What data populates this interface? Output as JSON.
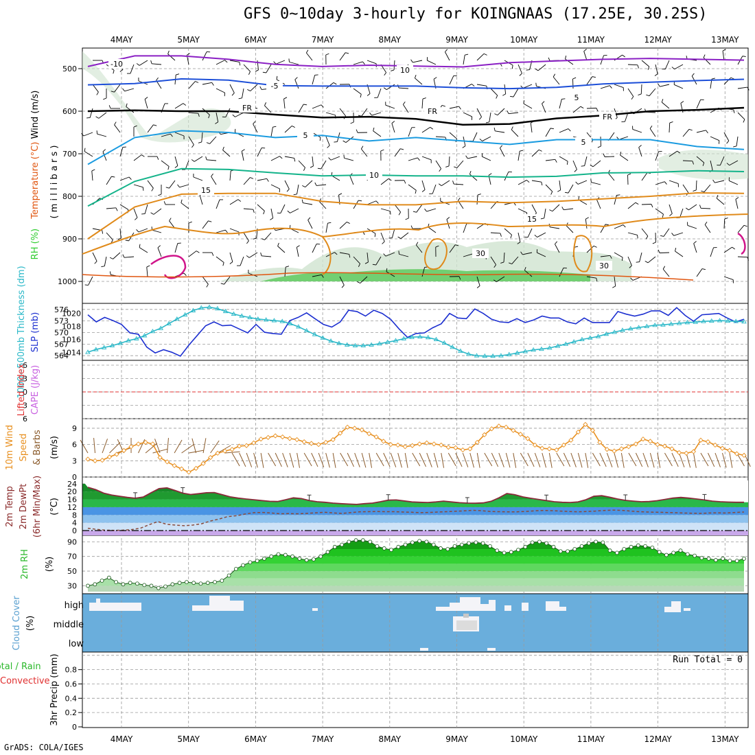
{
  "title": "GFS 0~10day 3-hourly for KOINGNAAS (17.25E, 30.25S)",
  "credit": "GrADS: COLA/IGES",
  "dates": [
    "4MAY",
    "5MAY",
    "6MAY",
    "7MAY",
    "8MAY",
    "9MAY",
    "10MAY",
    "11MAY",
    "12MAY",
    "13MAY"
  ],
  "colors": {
    "temp_cold": "#8a1fc4",
    "temp_blue": "#1d4fd8",
    "temp_cyan": "#1a9be0",
    "temp_green": "#13b38a",
    "temp_orange": "#e08a1a",
    "temp_red": "#e0550f",
    "magenta": "#d0148a",
    "rh_green": "#2ecc2e",
    "cloud_blue": "#6aaedc",
    "slp_blue": "#1c2fd0",
    "thick_cyan": "#2ab8c8",
    "wind_orange": "#e89020",
    "barb_brown": "#8a5a2a"
  },
  "labels": {
    "panel1_wind": "Wind (m/s)",
    "panel1_temp": "Temperature (°C)",
    "panel1_rh": "RH (%)",
    "panel1_units": "( m i l l i b a r s )",
    "panel2_thick": "1000~500mb Thickness (dm)",
    "panel2_slp": "SLP (mb)",
    "panel3_li": "Lifted Index",
    "panel3_cape": "CAPE (J/kg)",
    "panel4_a": "10m Wind",
    "panel4_b": "Speed",
    "panel4_c": "& Barbs",
    "panel4_units": "(m/s)",
    "panel5_a": "2m Temp",
    "panel5_b": "2m DewPt",
    "panel5_c": "(6hr Min/Max)",
    "panel5_units": "(°C)",
    "panel6_a": "2m RH",
    "panel6_units": "(%)",
    "panel7_a": "Cloud Cover",
    "panel7_units": "(%)",
    "panel8_a": "Total / Rain",
    "panel8_b": "Convective",
    "panel8_units": "3hr Precip (mm)",
    "run_total": "Run Total = 0"
  },
  "chart_data": [
    {
      "type": "contour",
      "name": "upper-air-cross-section",
      "ylabel": "millibars",
      "y_ticks": [
        "500",
        "600",
        "700",
        "800",
        "900",
        "1000"
      ],
      "contour_labels": [
        "-10",
        "10",
        "-5",
        "5",
        "FR",
        "FR",
        "FR",
        "5",
        "5",
        "10",
        "15",
        "15",
        "30",
        "30"
      ],
      "isotherms": [
        {
          "label": "-10",
          "level_mb": [
            495,
            470,
            470,
            478,
            490,
            495,
            492,
            494,
            496,
            486,
            482,
            478,
            476,
            478,
            480
          ]
        },
        {
          "label": "-5",
          "level_mb": [
            538,
            535,
            524,
            527,
            540,
            541,
            541,
            541,
            545,
            547,
            544,
            536,
            532,
            528,
            525
          ]
        },
        {
          "label": "FR",
          "level_mb": [
            600,
            598,
            600,
            600,
            608,
            615,
            613,
            618,
            632,
            630,
            617,
            610,
            600,
            597,
            592
          ]
        },
        {
          "label": "5",
          "level_mb": [
            725,
            662,
            646,
            650,
            662,
            657,
            670,
            662,
            670,
            678,
            667,
            667,
            667,
            683,
            690
          ]
        },
        {
          "label": "10",
          "level_mb": [
            823,
            765,
            735,
            737,
            745,
            752,
            750,
            752,
            752,
            755,
            753,
            745,
            744,
            740,
            742
          ]
        },
        {
          "label": "15",
          "level_mb": [
            900,
            825,
            795,
            793,
            793,
            812,
            820,
            820,
            812,
            815,
            812,
            806,
            800,
            792,
            793
          ]
        }
      ]
    },
    {
      "type": "line",
      "name": "slp-thickness",
      "y_ticks_left": [
        "576",
        "573",
        "570",
        "567",
        "564"
      ],
      "y_ticks_right": [
        "1020",
        "1018",
        "1016",
        "1014"
      ],
      "series": [
        {
          "name": "SLP (mb)",
          "values": [
            1019.8,
            1018.7,
            1019.4,
            1018.9,
            1018.3,
            1017.0,
            1016.8,
            1014.8,
            1013.9,
            1014.4,
            1014.0,
            1013.4,
            1015.1,
            1016.6,
            1018.1,
            1018.7,
            1018.1,
            1018.2,
            1017.6,
            1017.0,
            1018.3,
            1017.1,
            1016.9,
            1016.8,
            1018.9,
            1019.4,
            1020.1,
            1019.2,
            1018.3,
            1017.9,
            1018.7,
            1020.5,
            1020.3,
            1019.6,
            1020.5,
            1020.0,
            1019.1,
            1017.6,
            1016.3,
            1016.9,
            1017.0,
            1017.8,
            1018.4,
            1020.0,
            1019.3,
            1019.2,
            1020.7,
            1020.0,
            1019.1,
            1018.7,
            1018.6,
            1019.2,
            1018.6,
            1019.0,
            1019.6,
            1019.3,
            1019.3,
            1018.7,
            1018.4,
            1019.3,
            1018.6,
            1018.6,
            1018.6,
            1020.3,
            1019.9,
            1019.6,
            1019.9,
            1020.4,
            1020.4,
            1019.7,
            1020.9,
            1019.7,
            1018.8,
            1019.8,
            1019.9,
            1020.0,
            1019.3,
            1018.7,
            1019.1
          ]
        },
        {
          "name": "Thickness (dm)",
          "values": [
            564.9,
            565.6,
            566.1,
            566.6,
            567.2,
            567.9,
            568.4,
            569.2,
            570.3,
            571.1,
            572.3,
            573.5,
            574.6,
            575.7,
            576.4,
            576.6,
            576.2,
            575.5,
            574.8,
            574.3,
            573.9,
            573.5,
            573.3,
            573.1,
            572.9,
            572.3,
            571.5,
            570.5,
            569.5,
            568.6,
            567.8,
            567.2,
            566.8,
            566.6,
            566.6,
            566.8,
            567.1,
            567.5,
            567.9,
            568.4,
            568.8,
            568.9,
            568.7,
            568.2,
            567.3,
            566.2,
            565.2,
            564.4,
            564.0,
            563.9,
            563.9,
            564.0,
            564.3,
            564.7,
            565.1,
            565.5,
            565.7,
            566.0,
            566.5,
            567.0,
            567.6,
            568.2,
            568.6,
            569.0,
            569.6,
            570.1,
            570.6,
            571.0,
            571.3,
            571.6,
            571.9,
            572.0,
            572.2,
            572.4,
            572.6,
            572.7,
            572.9,
            573.0,
            573.1,
            573.0,
            572.9,
            572.8
          ]
        }
      ]
    },
    {
      "type": "line",
      "name": "lifted-index-cape",
      "y_ticks": [
        "-6",
        "-3",
        "0",
        "3",
        "6"
      ],
      "series": [
        {
          "name": "Lifted Index",
          "values": []
        }
      ]
    },
    {
      "type": "line",
      "name": "10m-wind",
      "y_ticks": [
        "9",
        "6",
        "3",
        "0"
      ],
      "series": [
        {
          "name": "10m wind speed (m/s)",
          "values": [
            3.3,
            3.0,
            3.1,
            3.7,
            4.2,
            4.9,
            5.6,
            6.1,
            6.4,
            6.1,
            3.6,
            2.8,
            2.1,
            1.5,
            0.9,
            1.6,
            2.5,
            3.6,
            4.4,
            4.8,
            5.1,
            5.7,
            5.8,
            6.3,
            7.0,
            7.3,
            7.6,
            7.4,
            7.1,
            6.9,
            6.5,
            6.2,
            6.0,
            6.4,
            6.9,
            8.1,
            9.2,
            9.0,
            8.7,
            8.0,
            7.4,
            6.6,
            6.0,
            5.9,
            5.6,
            5.8,
            6.1,
            6.3,
            6.1,
            5.9,
            5.5,
            5.4,
            5.0,
            5.2,
            6.4,
            7.8,
            8.9,
            9.4,
            9.2,
            8.6,
            7.9,
            7.1,
            5.9,
            5.3,
            5.2,
            5.0,
            5.9,
            6.8,
            8.3,
            9.7,
            8.6,
            6.4,
            5.1,
            4.8,
            5.2,
            5.6,
            6.1,
            7.0,
            6.6,
            6.0,
            5.7,
            5.2,
            4.5,
            4.4,
            4.7,
            6.8,
            6.5,
            5.9,
            5.3,
            4.9,
            4.3,
            4.0
          ]
        }
      ]
    },
    {
      "type": "area",
      "name": "2m-temperature",
      "y_ticks": [
        "24",
        "20",
        "16",
        "12",
        "8",
        "4",
        "0"
      ],
      "series": [
        {
          "name": "2m Temp",
          "values": [
            22.2,
            21.0,
            19.2,
            18.2,
            17.6,
            17.0,
            16.6,
            17.2,
            19.4,
            21.5,
            21.9,
            20.6,
            19.2,
            18.5,
            18.9,
            19.4,
            19.5,
            18.4,
            17.3,
            16.7,
            16.2,
            15.8,
            15.4,
            15.0,
            14.9,
            15.8,
            16.8,
            16.4,
            15.4,
            14.8,
            14.5,
            14.1,
            13.8,
            13.6,
            13.4,
            13.8,
            14.1,
            14.8,
            15.6,
            15.7,
            15.2,
            14.7,
            14.5,
            14.4,
            14.7,
            15.1,
            14.7,
            14.3,
            14.1,
            14.0,
            14.2,
            15.0,
            16.8,
            19.0,
            18.4,
            17.3,
            16.6,
            16.0,
            15.4,
            14.8,
            14.5,
            14.4,
            14.7,
            15.8,
            17.6,
            17.9,
            17.1,
            16.2,
            15.5,
            15.1,
            14.8,
            14.9,
            15.3,
            16.0,
            16.7,
            17.0,
            16.7,
            16.2,
            15.7,
            15.1,
            14.8,
            14.6,
            14.5,
            14.5
          ]
        },
        {
          "name": "2m DewPt",
          "values": [
            1.2,
            0.6,
            0.2,
            0.1,
            0.2,
            0.5,
            1.2,
            3.0,
            4.6,
            3.2,
            2.8,
            2.5,
            2.8,
            3.5,
            4.9,
            5.9,
            7.2,
            7.6,
            8.5,
            9.2,
            9.3,
            9.0,
            8.6,
            8.7,
            8.6,
            8.8,
            9.1,
            9.4,
            9.1,
            8.8,
            9.2,
            9.6,
            9.7,
            9.8,
            9.7,
            9.7,
            9.5,
            9.4,
            9.2,
            9.3,
            9.5,
            9.7,
            9.9,
            10.1,
            10.4,
            10.2,
            9.8,
            9.7,
            9.6,
            9.6,
            9.8,
            10.1,
            10.3,
            10.2,
            10.0,
            9.8,
            9.6,
            9.8,
            10.0,
            10.3,
            10.5,
            10.4,
            10.0,
            9.7,
            9.5,
            9.4,
            9.3,
            9.2,
            9.0,
            8.9,
            8.8,
            9.0,
            9.1,
            9.0,
            9.3,
            9.5
          ]
        }
      ]
    },
    {
      "type": "area",
      "name": "2m-relative-humidity",
      "y_ticks": [
        "90",
        "70",
        "50",
        "30"
      ],
      "series": [
        {
          "name": "2m RH",
          "values": [
            30,
            32,
            37,
            41,
            35,
            32,
            34,
            33,
            31,
            30,
            27,
            29,
            32,
            34,
            35,
            34,
            33,
            34,
            35,
            37,
            44,
            53,
            58,
            62,
            64,
            67,
            70,
            73,
            72,
            70,
            67,
            65,
            66,
            70,
            76,
            83,
            86,
            90,
            92,
            92,
            90,
            84,
            81,
            79,
            83,
            86,
            89,
            91,
            90,
            86,
            81,
            80,
            84,
            86,
            88,
            89,
            88,
            84,
            78,
            75,
            76,
            79,
            83,
            89,
            90,
            88,
            83,
            77,
            77,
            80,
            84,
            88,
            90,
            89,
            78,
            75,
            80,
            83,
            85,
            84,
            82,
            76,
            72,
            75,
            78,
            73,
            71,
            68,
            67,
            65,
            67,
            64,
            64,
            67
          ]
        }
      ]
    },
    {
      "type": "heatmap",
      "name": "cloud-cover",
      "categories": [
        "high",
        "middle",
        "low"
      ]
    },
    {
      "type": "bar",
      "name": "3hr-precip",
      "ylabel": "3hr Precip (mm)",
      "y_ticks": [
        "0.8",
        "0.6",
        "0.4",
        "0.2",
        "0"
      ],
      "ylim": [
        0,
        1
      ],
      "values": []
    }
  ]
}
